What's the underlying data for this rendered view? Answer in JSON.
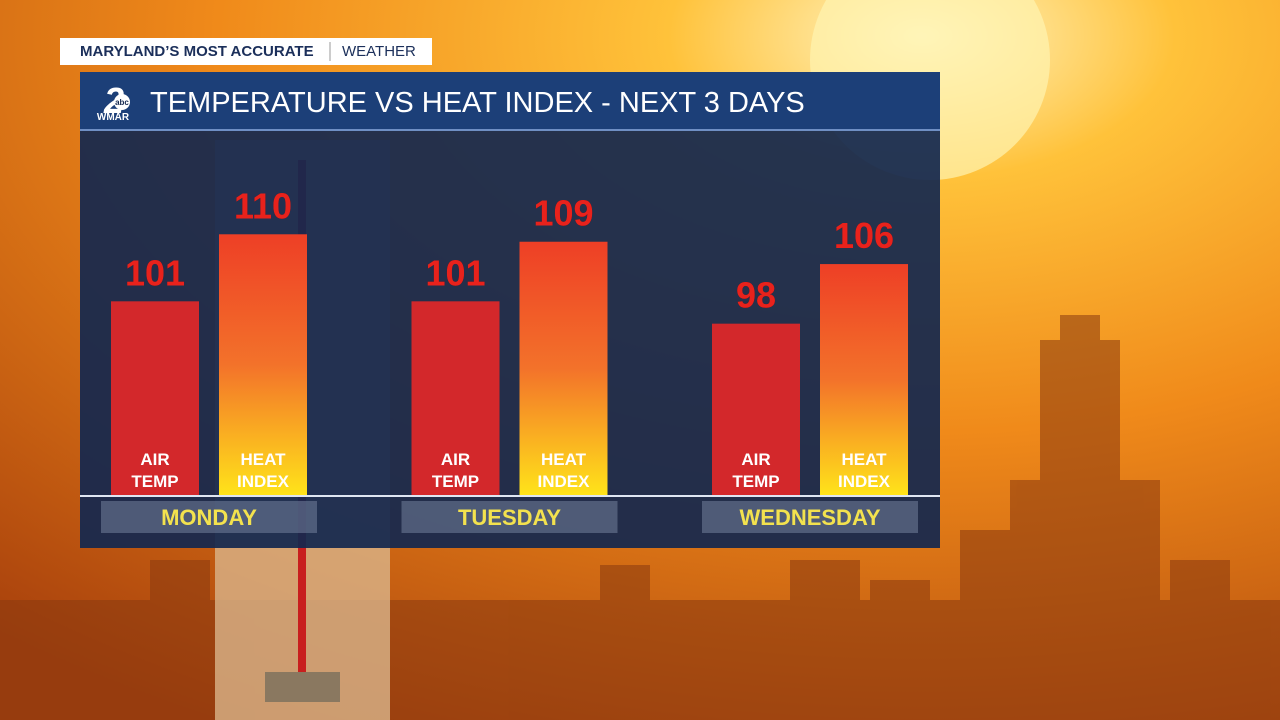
{
  "header": {
    "tag": "MARYLAND’S MOST ACCURATE",
    "tag_right": "WEATHER",
    "logo_number": "2",
    "logo_network": "abc",
    "logo_station": "WMAR"
  },
  "chart_data": {
    "type": "bar",
    "title": "TEMPERATURE VS HEAT INDEX - NEXT 3 DAYS",
    "categories": [
      "MONDAY",
      "TUESDAY",
      "WEDNESDAY"
    ],
    "series": [
      {
        "name": "AIR TEMP",
        "color": "#d3282b",
        "values": [
          101,
          101,
          98
        ]
      },
      {
        "name": "HEAT INDEX",
        "color": "#ee3f26",
        "values": [
          110,
          109,
          106
        ]
      }
    ],
    "ylim": [
      75,
      124
    ]
  }
}
